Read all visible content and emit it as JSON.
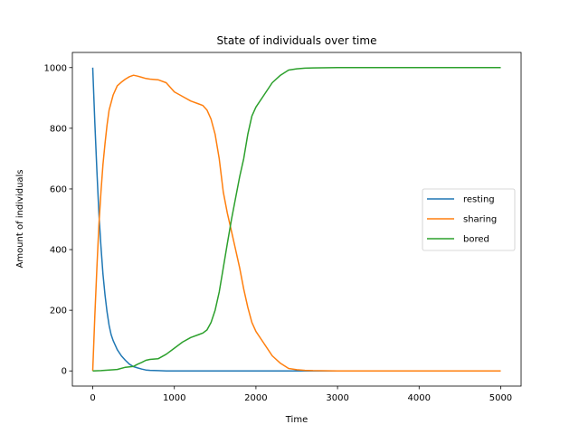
{
  "chart_data": {
    "type": "line",
    "title": "State of individuals over time",
    "xlabel": "Time",
    "ylabel": "Amount of individuals",
    "xlim": [
      -250,
      5250
    ],
    "ylim": [
      -50,
      1050
    ],
    "xticks": [
      0,
      1000,
      2000,
      3000,
      4000,
      5000
    ],
    "yticks": [
      0,
      200,
      400,
      600,
      800,
      1000
    ],
    "grid": false,
    "legend_position": "center-right",
    "series": [
      {
        "name": "resting",
        "color": "#1f77b4",
        "x": [
          0,
          25,
          50,
          75,
          100,
          125,
          150,
          175,
          200,
          225,
          250,
          300,
          350,
          400,
          450,
          500,
          550,
          600,
          650,
          700,
          800,
          900,
          1000,
          1500,
          2000,
          2500,
          3000,
          4000,
          5000
        ],
        "y": [
          1000,
          820,
          660,
          520,
          410,
          320,
          250,
          195,
          150,
          120,
          100,
          70,
          50,
          35,
          22,
          14,
          10,
          6,
          3,
          2,
          1,
          0,
          0,
          0,
          0,
          0,
          0,
          0,
          0
        ]
      },
      {
        "name": "sharing",
        "color": "#ff7f0e",
        "x": [
          0,
          25,
          50,
          75,
          100,
          125,
          150,
          175,
          200,
          250,
          300,
          350,
          400,
          450,
          500,
          550,
          600,
          650,
          700,
          800,
          900,
          1000,
          1100,
          1200,
          1300,
          1350,
          1400,
          1450,
          1500,
          1550,
          1600,
          1650,
          1700,
          1750,
          1800,
          1850,
          1900,
          1950,
          2000,
          2100,
          2200,
          2300,
          2400,
          2500,
          2600,
          2700,
          3000,
          4000,
          5000
        ],
        "y": [
          0,
          180,
          340,
          480,
          590,
          680,
          750,
          810,
          860,
          910,
          940,
          952,
          962,
          970,
          975,
          972,
          968,
          964,
          962,
          960,
          950,
          920,
          905,
          890,
          880,
          875,
          860,
          830,
          780,
          700,
          590,
          520,
          460,
          400,
          340,
          270,
          210,
          160,
          130,
          90,
          50,
          25,
          8,
          4,
          2,
          1,
          0,
          0,
          0
        ]
      },
      {
        "name": "bored",
        "color": "#2ca02c",
        "x": [
          0,
          100,
          200,
          300,
          400,
          500,
          550,
          600,
          650,
          700,
          800,
          900,
          1000,
          1100,
          1200,
          1300,
          1350,
          1400,
          1450,
          1500,
          1550,
          1600,
          1650,
          1700,
          1750,
          1800,
          1850,
          1900,
          1950,
          2000,
          2100,
          2200,
          2300,
          2400,
          2500,
          2600,
          2700,
          3000,
          4000,
          5000
        ],
        "y": [
          0,
          1,
          3,
          5,
          12,
          15,
          22,
          28,
          35,
          38,
          40,
          55,
          75,
          95,
          110,
          120,
          125,
          135,
          160,
          200,
          260,
          340,
          420,
          500,
          570,
          640,
          700,
          780,
          840,
          870,
          910,
          950,
          975,
          992,
          996,
          998,
          999,
          1000,
          1000,
          1000
        ]
      }
    ]
  }
}
